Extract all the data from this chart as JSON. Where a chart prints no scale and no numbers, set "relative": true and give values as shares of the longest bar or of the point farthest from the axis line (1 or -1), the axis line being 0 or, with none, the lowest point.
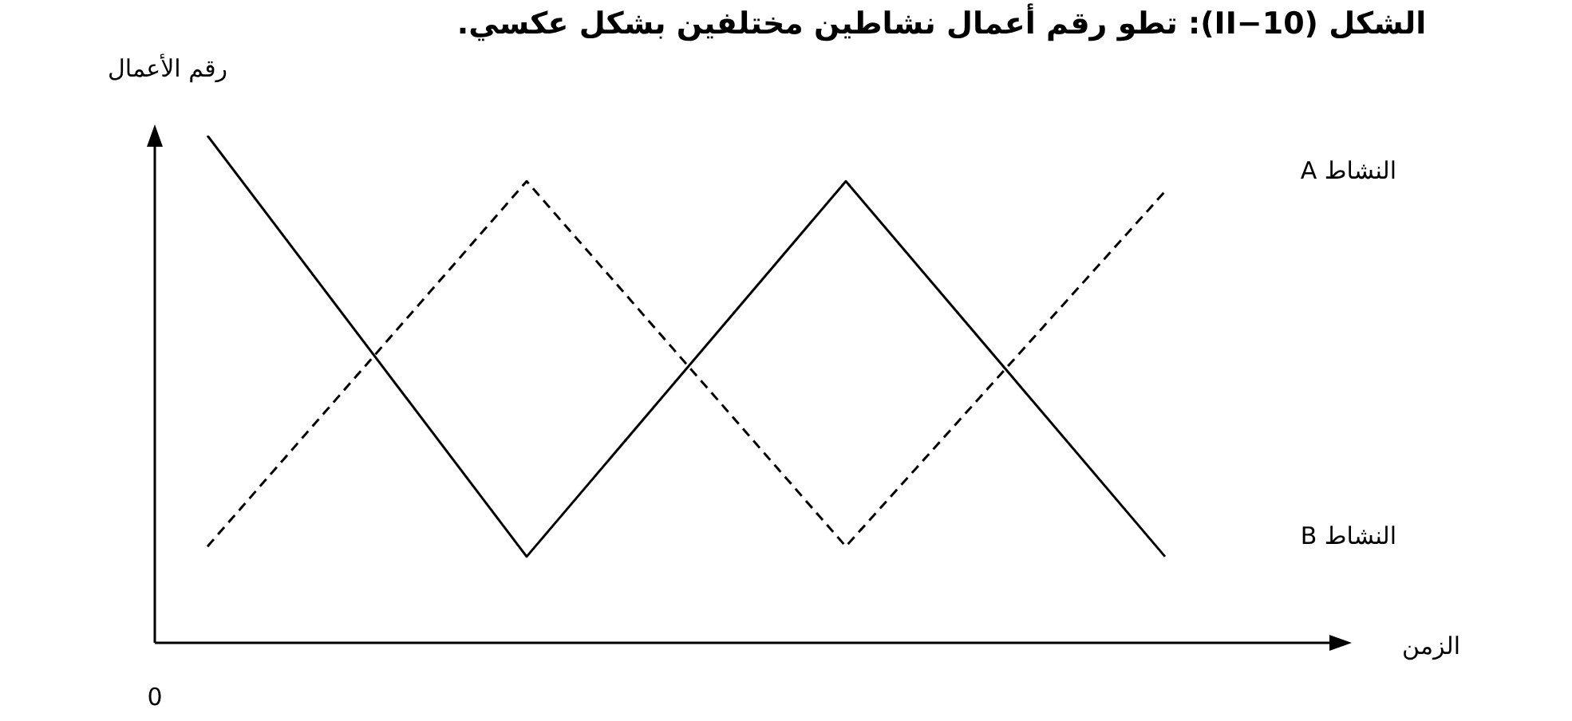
{
  "chart_data": {
    "type": "line",
    "title": "الشكل (II−10): تطو رقم أعمال نشاطين مختلفين بشكل عكسي.",
    "xlabel": "الزمن",
    "ylabel": "رقم الأعمال",
    "relative": true,
    "marker": "none",
    "categories": [
      null,
      null,
      null,
      null
    ],
    "series": [
      {
        "name": "النشاط A",
        "color": "#000000",
        "line_style": "dashed",
        "values": [
          0.19,
          0.91,
          0.19,
          0.89
        ]
      },
      {
        "name": "النشاط B",
        "color": "#000000",
        "line_style": "solid",
        "values": [
          1,
          0.17,
          0.91,
          0.17
        ]
      }
    ],
    "annotations": [
      "0"
    ]
  }
}
